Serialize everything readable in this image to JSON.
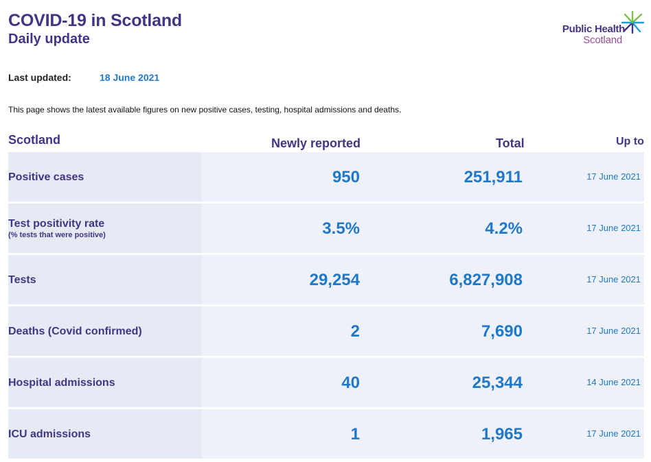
{
  "header": {
    "title": "COVID-19 in Scotland",
    "subtitle": "Daily update"
  },
  "logo": {
    "line1": "Public Health",
    "line2": "Scotland",
    "icon": "star-burst-icon",
    "colors": {
      "primary": "#3f3685",
      "secondary": "#9b4a9b",
      "accent_green": "#7ac143",
      "accent_blue": "#1f9ad6"
    }
  },
  "last_updated": {
    "label": "Last updated:",
    "value": "18 June 2021"
  },
  "intro": "This page shows the latest available figures on new positive cases, testing, hospital admissions and deaths.",
  "table": {
    "headers": {
      "area": "Scotland",
      "newly_reported": "Newly reported",
      "total": "Total",
      "up_to": "Up to"
    },
    "rows": [
      {
        "label": "Positive cases",
        "sublabel": "",
        "newly_reported": "950",
        "total": "251,911",
        "up_to": "17 June 2021"
      },
      {
        "label": "Test positivity rate",
        "sublabel": "(% tests that were positive)",
        "newly_reported": "3.5%",
        "total": "4.2%",
        "up_to": "17 June 2021"
      },
      {
        "label": "Tests",
        "sublabel": "",
        "newly_reported": "29,254",
        "total": "6,827,908",
        "up_to": "17 June 2021"
      },
      {
        "label": "Deaths (Covid confirmed)",
        "sublabel": "",
        "newly_reported": "2",
        "total": "7,690",
        "up_to": "17 June 2021"
      },
      {
        "label": "Hospital admissions",
        "sublabel": "",
        "newly_reported": "40",
        "total": "25,344",
        "up_to": "14 June 2021"
      },
      {
        "label": "ICU admissions",
        "sublabel": "",
        "newly_reported": "1",
        "total": "1,965",
        "up_to": "17 June 2021"
      }
    ]
  },
  "colors": {
    "heading": "#3f3685",
    "value": "#1f78c8",
    "row_bg": "#eef1f9",
    "label_bg": "#e6eaf5"
  }
}
